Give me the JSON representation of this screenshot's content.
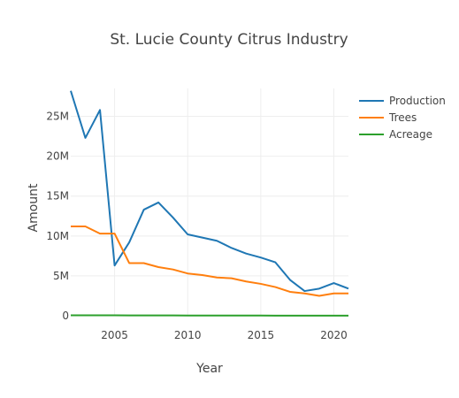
{
  "chart_data": {
    "type": "line",
    "title": "St. Lucie County Citrus Industry",
    "xlabel": "Year",
    "ylabel": "Amount",
    "xlim": [
      2002,
      2021
    ],
    "ylim": [
      0,
      28500000
    ],
    "x_ticks": [
      2005,
      2010,
      2015,
      2020
    ],
    "y_ticks": [
      0,
      5000000,
      10000000,
      15000000,
      20000000,
      25000000
    ],
    "y_tick_labels": [
      "0",
      "5M",
      "10M",
      "15M",
      "20M",
      "25M"
    ],
    "grid": true,
    "legend_position": "top-right",
    "x": [
      2002,
      2003,
      2004,
      2005,
      2006,
      2007,
      2008,
      2009,
      2010,
      2011,
      2012,
      2013,
      2014,
      2015,
      2016,
      2017,
      2018,
      2019,
      2020,
      2021
    ],
    "series": [
      {
        "name": "Production",
        "color": "#1f77b4",
        "values": [
          28200000,
          22300000,
          25800000,
          6300000,
          9200000,
          13300000,
          14200000,
          12300000,
          10200000,
          9800000,
          9400000,
          8500000,
          7800000,
          7300000,
          6700000,
          4500000,
          3100000,
          3400000,
          4100000,
          3400000
        ]
      },
      {
        "name": "Trees",
        "color": "#ff7f0e",
        "values": [
          11200000,
          11200000,
          10300000,
          10300000,
          6600000,
          6600000,
          6100000,
          5800000,
          5300000,
          5100000,
          4800000,
          4700000,
          4300000,
          4000000,
          3600000,
          3000000,
          2800000,
          2500000,
          2800000,
          2800000
        ]
      },
      {
        "name": "Acreage",
        "color": "#2ca02c",
        "values": [
          60000,
          58000,
          55000,
          52000,
          46000,
          42000,
          38000,
          35000,
          32000,
          30000,
          28000,
          26000,
          24000,
          22000,
          20000,
          18000,
          16000,
          14000,
          12000,
          10000
        ]
      }
    ]
  }
}
